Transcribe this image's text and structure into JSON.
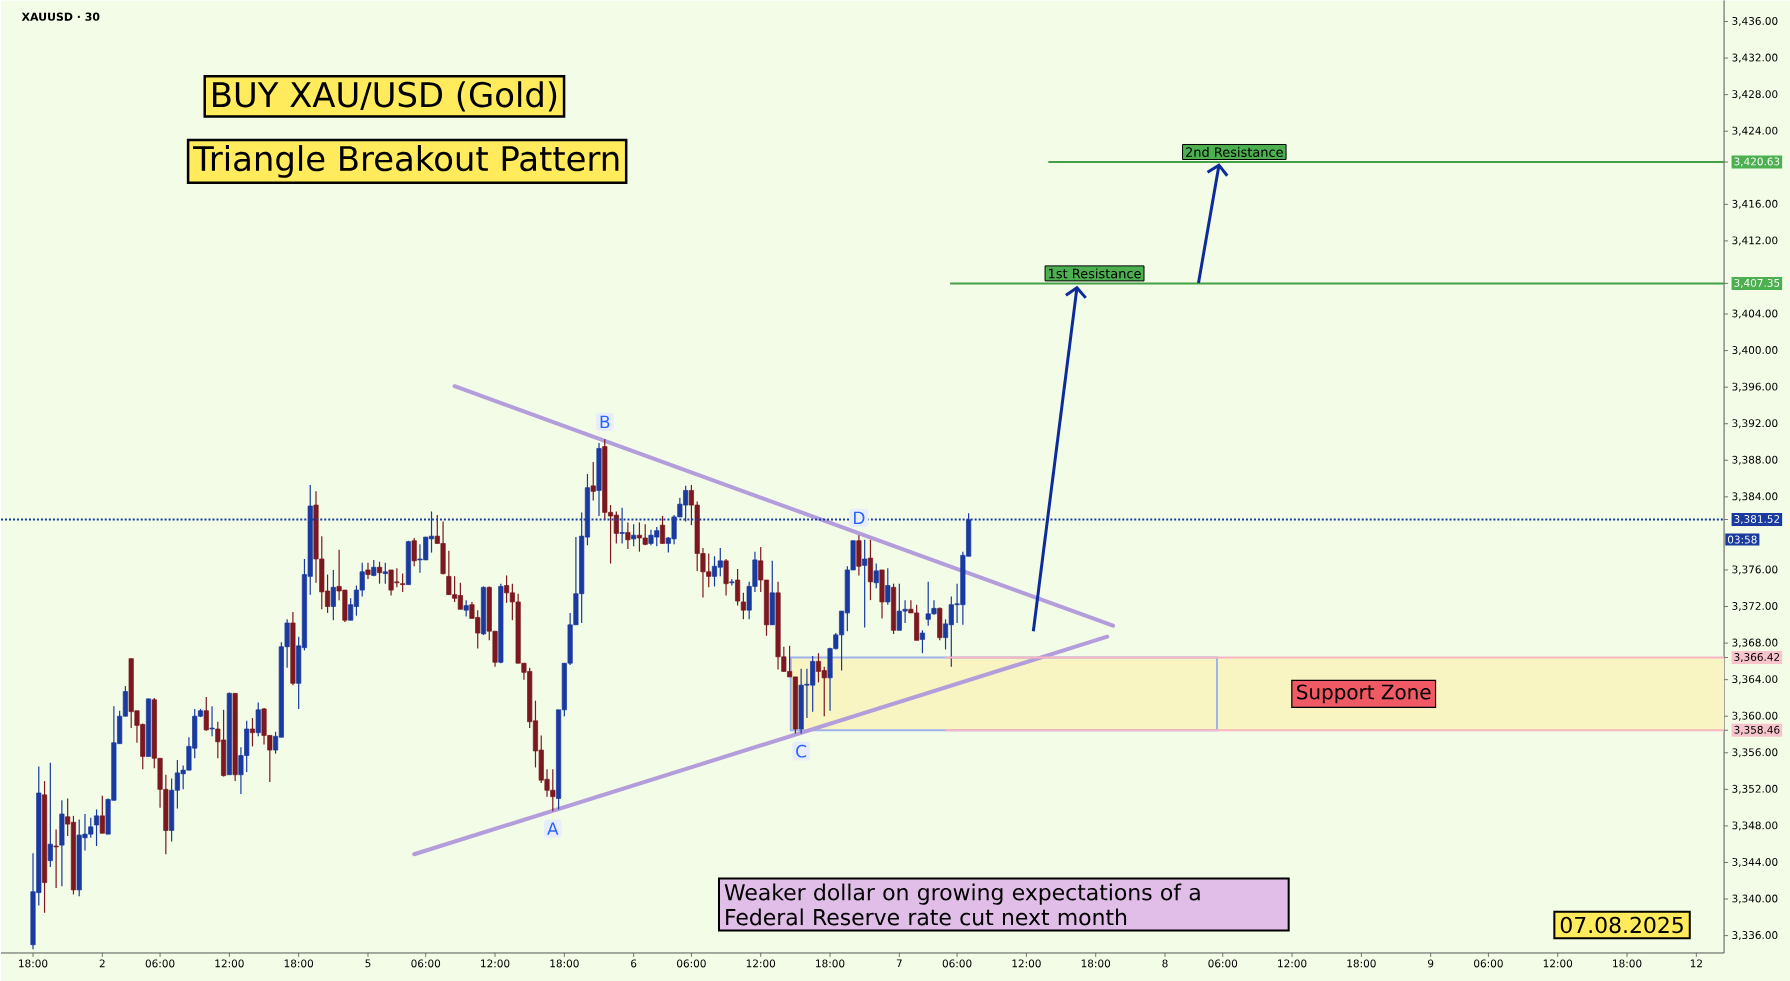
{
  "chart_data": {
    "type": "candlestick",
    "title": "BUY XAU/USD (Gold)",
    "subtitle": "Triangle Breakout Pattern",
    "annotations": [
      "XAUUSD · 30",
      "Weaker dollar on growing expectations of a Federal Reserve rate cut next month",
      "07.08.2025",
      "03:58",
      {
        "text": "A",
        "y": 3349.6
      },
      {
        "text": "B",
        "y": 3390.3
      },
      {
        "text": "C",
        "y": 3358.1
      },
      {
        "text": "D",
        "y": 3379.8
      }
    ],
    "categories": [
      "18:00",
      null,
      null,
      null,
      null,
      null,
      null,
      null,
      null,
      null,
      null,
      null,
      "2",
      null,
      null,
      null,
      null,
      null,
      null,
      null,
      null,
      null,
      "06:00",
      null,
      null,
      null,
      null,
      null,
      null,
      null,
      null,
      null,
      null,
      null,
      "12:00",
      null,
      null,
      null,
      null,
      null,
      null,
      null,
      null,
      null,
      null,
      null,
      "18:00",
      null,
      null,
      null,
      null,
      null,
      null,
      null,
      null,
      null,
      null,
      null,
      "5",
      null,
      null,
      null,
      null,
      null,
      null,
      null,
      null,
      null,
      "06:00",
      null,
      null,
      null,
      null,
      null,
      null,
      null,
      null,
      null,
      null,
      null,
      "12:00",
      null,
      null,
      null,
      null,
      null,
      null,
      null,
      null,
      null,
      null,
      null,
      "18:00",
      null,
      null,
      null,
      null,
      null,
      null,
      null,
      null,
      null,
      null,
      null,
      "6",
      null,
      null,
      null,
      null,
      null,
      null,
      null,
      null,
      null,
      "06:00",
      null,
      null,
      null,
      null,
      null,
      null,
      null,
      null,
      null,
      null,
      null,
      "12:00",
      null,
      null,
      null,
      null,
      null,
      null,
      null,
      null,
      null,
      null,
      null,
      "18:00",
      null,
      null,
      null,
      null,
      null,
      null,
      null,
      null,
      null,
      null,
      null,
      "7",
      null,
      null,
      null,
      null,
      null,
      null,
      null,
      null,
      null,
      "06:00",
      null,
      null,
      null,
      null,
      null,
      null,
      null,
      null,
      null,
      null,
      null,
      "12:00",
      null,
      null,
      null,
      null,
      null,
      null,
      null,
      null,
      null,
      null,
      null,
      "18:00",
      null,
      null,
      null,
      null,
      null,
      null,
      null,
      null,
      null,
      null,
      null,
      "8",
      null,
      null,
      null,
      null,
      null,
      null,
      null,
      null,
      null,
      "06:00",
      null,
      null,
      null,
      null,
      null,
      null,
      null,
      null,
      null,
      null,
      null,
      "12:00",
      null,
      null,
      null,
      null,
      null,
      null,
      null,
      null,
      null,
      null,
      null,
      "18:00",
      null,
      null,
      null,
      null,
      null,
      null,
      null,
      null,
      null,
      null,
      null,
      "9",
      null,
      null,
      null,
      null,
      null,
      null,
      null,
      null,
      null,
      "06:00",
      null,
      null,
      null,
      null,
      null,
      null,
      null,
      null,
      null,
      null,
      null,
      "12:00",
      null,
      null,
      null,
      null,
      null,
      null,
      null,
      null,
      null,
      null,
      null,
      "18:00",
      null,
      null,
      null,
      null,
      null,
      null,
      null,
      null,
      null,
      null,
      null,
      "12"
    ],
    "ohlc": [
      [
        3335,
        3345.0,
        3334.5,
        3340.8
      ],
      [
        3340.7,
        3354.5,
        3339.3,
        3351.6
      ],
      [
        3351.4,
        3352.9,
        3338.5,
        3341.8
      ],
      [
        3344.2,
        3354.9,
        3343.5,
        3346.0
      ],
      [
        3345.8,
        3347.6,
        3341.2,
        3345.7
      ],
      [
        3345.9,
        3350.8,
        3341.4,
        3349.3
      ],
      [
        3349.0,
        3351.0,
        3346.9,
        3348.2
      ],
      [
        3348.4,
        3349.1,
        3340.5,
        3341.0
      ],
      [
        3341.0,
        3348.7,
        3340.3,
        3347.0
      ],
      [
        3346.7,
        3349.3,
        3345.3,
        3347.1
      ],
      [
        3347.1,
        3348.9,
        3346.7,
        3347.9
      ],
      [
        3348.1,
        3349.8,
        3345.8,
        3349.1
      ],
      [
        3349.1,
        3351.3,
        3347.2,
        3347.2
      ],
      [
        3347.1,
        3351.0,
        3347.1,
        3350.9
      ],
      [
        3350.8,
        3361.1,
        3350.8,
        3357.1
      ],
      [
        3357.0,
        3360.6,
        3357.0,
        3360.0
      ],
      [
        3360.0,
        3363.3,
        3360.0,
        3362.7
      ],
      [
        3366.3,
        3366.3,
        3358.7,
        3360.5
      ],
      [
        3360.6,
        3360.6,
        3357.1,
        3359.0
      ],
      [
        3359.1,
        3359.2,
        3354.2,
        3355.6
      ],
      [
        3355.6,
        3361.9,
        3355.6,
        3361.9
      ],
      [
        3361.8,
        3362.0,
        3354.3,
        3355.4
      ],
      [
        3355.4,
        3355.4,
        3350.0,
        3352.0
      ],
      [
        3352.0,
        3353.6,
        3344.9,
        3347.5
      ],
      [
        3347.5,
        3353.2,
        3346.3,
        3351.9
      ],
      [
        3351.9,
        3355.2,
        3349.9,
        3353.8
      ],
      [
        3353.7,
        3354.6,
        3352.0,
        3354.1
      ],
      [
        3354.1,
        3357.7,
        3354.1,
        3356.7
      ],
      [
        3356.5,
        3360.8,
        3355.4,
        3360.0
      ],
      [
        3360.0,
        3360.8,
        3359.9,
        3360.6
      ],
      [
        3360.6,
        3362.1,
        3358.4,
        3358.5
      ],
      [
        3358.6,
        3361.1,
        3357.8,
        3358.7
      ],
      [
        3358.6,
        3359.4,
        3355.4,
        3357.2
      ],
      [
        3357.4,
        3360.7,
        3353.4,
        3353.5
      ],
      [
        3353.6,
        3362.6,
        3353.6,
        3362.5
      ],
      [
        3362.5,
        3362.5,
        3352.9,
        3353.6
      ],
      [
        3353.6,
        3356.6,
        3351.5,
        3355.7
      ],
      [
        3355.7,
        3359.5,
        3353.9,
        3358.6
      ],
      [
        3358.6,
        3359.8,
        3356.7,
        3358.2
      ],
      [
        3358.2,
        3361.5,
        3357.8,
        3360.7
      ],
      [
        3360.8,
        3360.9,
        3356.9,
        3357.9
      ],
      [
        3357.9,
        3357.9,
        3352.8,
        3356.3
      ],
      [
        3356.3,
        3358.3,
        3355.9,
        3357.8
      ],
      [
        3357.7,
        3368.1,
        3357.7,
        3367.6
      ],
      [
        3367.6,
        3370.6,
        3365.3,
        3370.2
      ],
      [
        3370.2,
        3371.4,
        3363.4,
        3363.6
      ],
      [
        3363.6,
        3368.7,
        3360.8,
        3367.7
      ],
      [
        3367.5,
        3377.2,
        3367.2,
        3375.5
      ],
      [
        3375.3,
        3385.3,
        3373.3,
        3383.0
      ],
      [
        3383.1,
        3384.6,
        3374.6,
        3377.2
      ],
      [
        3377.2,
        3379.7,
        3371.7,
        3373.6
      ],
      [
        3373.7,
        3375.5,
        3371.3,
        3372.0
      ],
      [
        3372.0,
        3376.0,
        3370.5,
        3374.1
      ],
      [
        3374.2,
        3378.2,
        3372.7,
        3373.7
      ],
      [
        3373.8,
        3373.8,
        3370.3,
        3370.5
      ],
      [
        3370.5,
        3372.9,
        3370.5,
        3372.2
      ],
      [
        3372.0,
        3374.3,
        3371.0,
        3373.8
      ],
      [
        3373.8,
        3376.8,
        3373.1,
        3375.8
      ],
      [
        3376.0,
        3376.8,
        3375.0,
        3375.5
      ],
      [
        3375.4,
        3377.1,
        3375.3,
        3376.3
      ],
      [
        3376.3,
        3376.9,
        3374.5,
        3375.7
      ],
      [
        3375.6,
        3376.8,
        3374.5,
        3375.8
      ],
      [
        3376.0,
        3376.0,
        3373.2,
        3373.8
      ],
      [
        3374.7,
        3376.2,
        3374.1,
        3374.6
      ],
      [
        3374.5,
        3375.6,
        3373.6,
        3374.4
      ],
      [
        3374.4,
        3379.2,
        3374.4,
        3379.1
      ],
      [
        3379.2,
        3379.5,
        3376.4,
        3377.0
      ],
      [
        3377.1,
        3378.8,
        3375.7,
        3377.2
      ],
      [
        3377.1,
        3379.6,
        3377.1,
        3379.6
      ],
      [
        3379.4,
        3382.4,
        3377.9,
        3379.7
      ],
      [
        3379.7,
        3382.0,
        3378.9,
        3378.9
      ],
      [
        3378.9,
        3381.3,
        3375.5,
        3375.6
      ],
      [
        3375.3,
        3378.1,
        3373.3,
        3373.3
      ],
      [
        3373.3,
        3375.3,
        3372.5,
        3372.9
      ],
      [
        3373.2,
        3374.6,
        3371.7,
        3371.7
      ],
      [
        3371.6,
        3372.7,
        3370.9,
        3372.1
      ],
      [
        3372.2,
        3372.5,
        3370.7,
        3370.7
      ],
      [
        3370.8,
        3371.6,
        3367.4,
        3369.1
      ],
      [
        3369.0,
        3374.2,
        3368.9,
        3374.1
      ],
      [
        3374.1,
        3374.2,
        3368.3,
        3369.3
      ],
      [
        3369.3,
        3369.3,
        3365.4,
        3365.9
      ],
      [
        3365.9,
        3374.5,
        3365.8,
        3374.2
      ],
      [
        3374.3,
        3375.4,
        3372.4,
        3373.5
      ],
      [
        3373.5,
        3374.5,
        3370.5,
        3372.5
      ],
      [
        3372.5,
        3373.4,
        3365.8,
        3365.8
      ],
      [
        3365.8,
        3365.8,
        3364.0,
        3364.8
      ],
      [
        3364.9,
        3365.3,
        3358.7,
        3359.4
      ],
      [
        3359.5,
        3361.7,
        3354.4,
        3356.2
      ],
      [
        3356.3,
        3357.9,
        3352.7,
        3353.0
      ],
      [
        3353.1,
        3354.2,
        3351.2,
        3351.9
      ],
      [
        3351.9,
        3354.2,
        3349.6,
        3351.2
      ],
      [
        3351.0,
        3360.7,
        3349.8,
        3360.7
      ],
      [
        3360.7,
        3365.8,
        3360.0,
        3365.8
      ],
      [
        3365.8,
        3371.3,
        3365.6,
        3370.0
      ],
      [
        3370.0,
        3379.6,
        3370.0,
        3373.4
      ],
      [
        3373.4,
        3382.3,
        3370.2,
        3379.7
      ],
      [
        3379.6,
        3386.5,
        3378.7,
        3385.0
      ],
      [
        3385.2,
        3387.8,
        3383.6,
        3384.6
      ],
      [
        3384.7,
        3389.9,
        3381.9,
        3389.3
      ],
      [
        3389.5,
        3390.3,
        3381.5,
        3382.3
      ],
      [
        3382.3,
        3383.1,
        3376.7,
        3381.9
      ],
      [
        3382.0,
        3382.4,
        3378.9,
        3380.0
      ],
      [
        3380.0,
        3382.8,
        3378.9,
        3380.1
      ],
      [
        3380.1,
        3381.2,
        3378.3,
        3379.3
      ],
      [
        3379.4,
        3381.0,
        3378.6,
        3379.8
      ],
      [
        3379.8,
        3381.2,
        3378.0,
        3379.5
      ],
      [
        3379.5,
        3381.0,
        3378.7,
        3378.8
      ],
      [
        3378.9,
        3380.4,
        3378.7,
        3379.8
      ],
      [
        3379.6,
        3380.7,
        3378.6,
        3380.3
      ],
      [
        3380.9,
        3381.9,
        3378.9,
        3378.9
      ],
      [
        3378.9,
        3379.6,
        3377.9,
        3379.5
      ],
      [
        3379.4,
        3382.0,
        3378.8,
        3381.8
      ],
      [
        3381.8,
        3383.9,
        3381.8,
        3383.2
      ],
      [
        3383.1,
        3385.2,
        3381.3,
        3384.7
      ],
      [
        3384.7,
        3385.3,
        3380.9,
        3383.1
      ],
      [
        3383.1,
        3383.5,
        3375.9,
        3377.8
      ],
      [
        3377.8,
        3378.4,
        3373.0,
        3375.8
      ],
      [
        3375.8,
        3377.8,
        3374.1,
        3375.3
      ],
      [
        3375.3,
        3377.5,
        3374.2,
        3376.4
      ],
      [
        3376.3,
        3378.4,
        3375.3,
        3377.0
      ],
      [
        3377.0,
        3377.2,
        3373.2,
        3374.5
      ],
      [
        3374.6,
        3375.0,
        3374.3,
        3374.7
      ],
      [
        3374.9,
        3376.1,
        3372.1,
        3372.6
      ],
      [
        3372.5,
        3373.5,
        3370.6,
        3371.6
      ],
      [
        3371.6,
        3374.7,
        3370.6,
        3374.2
      ],
      [
        3374.2,
        3378.0,
        3373.6,
        3377.1
      ],
      [
        3377.0,
        3378.5,
        3373.6,
        3374.9
      ],
      [
        3374.9,
        3374.9,
        3368.8,
        3370.0
      ],
      [
        3370.0,
        3377.0,
        3370.0,
        3373.5
      ],
      [
        3373.5,
        3374.7,
        3365.1,
        3366.5
      ],
      [
        3366.5,
        3367.6,
        3364.9,
        3364.9
      ],
      [
        3364.9,
        3367.7,
        3364.3,
        3364.3
      ],
      [
        3364.3,
        3364.3,
        3358.1,
        3358.6
      ],
      [
        3358.6,
        3365.2,
        3358.1,
        3363.4
      ],
      [
        3363.4,
        3365.2,
        3359.8,
        3363.5
      ],
      [
        3363.4,
        3366.6,
        3360.5,
        3366.0
      ],
      [
        3366.0,
        3366.9,
        3363.7,
        3364.9
      ],
      [
        3365.0,
        3365.4,
        3360.0,
        3364.2
      ],
      [
        3364.2,
        3367.5,
        3360.6,
        3367.4
      ],
      [
        3367.4,
        3369.1,
        3367.3,
        3368.9
      ],
      [
        3368.9,
        3371.5,
        3365.0,
        3371.5
      ],
      [
        3371.3,
        3376.4,
        3369.3,
        3376.0
      ],
      [
        3376.0,
        3379.2,
        3376.0,
        3379.2
      ],
      [
        3379.2,
        3379.8,
        3375.4,
        3376.4
      ],
      [
        3376.5,
        3379.3,
        3369.7,
        3377.2
      ],
      [
        3377.3,
        3379.3,
        3372.7,
        3374.7
      ],
      [
        3374.6,
        3376.7,
        3374.0,
        3375.9
      ],
      [
        3376.0,
        3376.0,
        3370.7,
        3372.5
      ],
      [
        3372.5,
        3376.2,
        3372.2,
        3374.3
      ],
      [
        3374.1,
        3374.5,
        3369.0,
        3369.4
      ],
      [
        3369.4,
        3374.5,
        3369.4,
        3371.5
      ],
      [
        3371.5,
        3372.7,
        3370.2,
        3371.7
      ],
      [
        3371.7,
        3372.7,
        3371.3,
        3371.3
      ],
      [
        3371.3,
        3372.2,
        3368.3,
        3368.3
      ],
      [
        3368.4,
        3369.4,
        3366.9,
        3369.1
      ],
      [
        3370.6,
        3374.7,
        3369.9,
        3371.2
      ],
      [
        3371.2,
        3372.7,
        3371.1,
        3371.8
      ],
      [
        3371.8,
        3371.9,
        3368.3,
        3368.6
      ],
      [
        3368.6,
        3370.6,
        3367.3,
        3370.1
      ],
      [
        3370.0,
        3373.1,
        3365.4,
        3372.2
      ],
      [
        3372.2,
        3374.5,
        3370.2,
        3372.3
      ],
      [
        3372.2,
        3378.0,
        3370.0,
        3377.6
      ],
      [
        3377.5,
        3382.2,
        3377.5,
        3381.5
      ],
      null,
      null,
      null,
      null,
      null,
      null,
      null,
      null,
      null,
      null,
      null,
      null,
      null,
      null,
      null,
      null,
      null,
      null,
      null,
      null,
      null,
      null,
      null,
      null,
      null,
      null,
      null,
      null,
      null,
      null,
      null,
      null,
      null,
      null,
      null,
      null,
      null,
      null,
      null,
      null,
      null,
      null,
      null,
      null,
      null,
      null,
      null,
      null,
      null,
      null,
      null,
      null,
      null,
      null,
      null,
      null,
      null,
      null,
      null,
      null,
      null,
      null,
      null,
      null,
      null,
      null,
      null,
      null,
      null,
      null,
      null,
      null,
      null,
      null,
      null,
      null,
      null,
      null,
      null,
      null,
      null,
      null,
      null,
      null,
      null,
      null,
      null,
      null,
      null,
      null,
      null,
      null,
      null,
      null,
      null,
      null,
      null,
      null,
      null,
      null,
      null,
      null,
      null,
      null,
      null,
      null,
      null,
      null,
      null,
      null,
      null,
      null,
      null,
      null,
      null,
      null,
      null,
      null,
      null,
      null,
      null,
      null,
      null,
      null,
      null,
      null
    ],
    "colors": [
      "#1a3aa0",
      "#1a3aa0",
      "#7b1820",
      "#1a3aa0",
      "#7b1820",
      "#1a3aa0",
      "#7b1820",
      "#7b1820",
      "#1a3aa0",
      "#1a3aa0",
      "#1a3aa0",
      "#1a3aa0",
      "#7b1820",
      "#1a3aa0",
      "#1a3aa0",
      "#1a3aa0",
      "#1a3aa0",
      "#7b1820",
      "#7b1820",
      "#7b1820",
      "#1a3aa0",
      "#7b1820",
      "#7b1820",
      "#7b1820",
      "#1a3aa0",
      "#1a3aa0",
      "#1a3aa0",
      "#1a3aa0",
      "#1a3aa0",
      "#1a3aa0",
      "#7b1820",
      "#1a3aa0",
      "#7b1820",
      "#7b1820",
      "#1a3aa0",
      "#7b1820",
      "#1a3aa0",
      "#1a3aa0",
      "#7b1820",
      "#1a3aa0",
      "#7b1820",
      "#7b1820",
      "#1a3aa0",
      "#1a3aa0",
      "#1a3aa0",
      "#7b1820",
      "#1a3aa0",
      "#1a3aa0",
      "#1a3aa0",
      "#7b1820",
      "#7b1820",
      "#7b1820",
      "#1a3aa0",
      "#7b1820",
      "#7b1820",
      "#1a3aa0",
      "#1a3aa0",
      "#1a3aa0",
      "#7b1820",
      "#1a3aa0",
      "#7b1820",
      "#1a3aa0",
      "#7b1820",
      "#7b1820",
      "#7b1820",
      "#1a3aa0",
      "#7b1820",
      "#1a3aa0",
      "#1a3aa0",
      "#1a3aa0",
      "#7b1820",
      "#7b1820",
      "#7b1820",
      "#7b1820",
      "#7b1820",
      "#1a3aa0",
      "#7b1820",
      "#7b1820",
      "#1a3aa0",
      "#7b1820",
      "#7b1820",
      "#1a3aa0",
      "#7b1820",
      "#7b1820",
      "#7b1820",
      "#7b1820",
      "#7b1820",
      "#7b1820",
      "#7b1820",
      "#7b1820",
      "#7b1820",
      "#1a3aa0",
      "#1a3aa0",
      "#1a3aa0",
      "#1a3aa0",
      "#1a3aa0",
      "#1a3aa0",
      "#7b1820",
      "#1a3aa0",
      "#7b1820",
      "#7b1820",
      "#7b1820",
      "#1a3aa0",
      "#7b1820",
      "#1a3aa0",
      "#7b1820",
      "#7b1820",
      "#1a3aa0",
      "#1a3aa0",
      "#7b1820",
      "#1a3aa0",
      "#1a3aa0",
      "#1a3aa0",
      "#1a3aa0",
      "#7b1820",
      "#7b1820",
      "#7b1820",
      "#7b1820",
      "#1a3aa0",
      "#1a3aa0",
      "#7b1820",
      "#1a3aa0",
      "#7b1820",
      "#7b1820",
      "#1a3aa0",
      "#1a3aa0",
      "#7b1820",
      "#7b1820",
      "#1a3aa0",
      "#7b1820",
      "#7b1820",
      "#7b1820",
      "#7b1820",
      "#1a3aa0",
      "#1a3aa0",
      "#1a3aa0",
      "#7b1820",
      "#7b1820",
      "#1a3aa0",
      "#1a3aa0",
      "#1a3aa0",
      "#1a3aa0",
      "#1a3aa0",
      "#7b1820",
      "#1a3aa0",
      "#7b1820",
      "#1a3aa0",
      "#7b1820",
      "#1a3aa0",
      "#7b1820",
      "#1a3aa0",
      "#1a3aa0",
      "#7b1820",
      "#7b1820",
      "#1a3aa0",
      "#1a3aa0",
      "#1a3aa0",
      "#7b1820",
      "#1a3aa0",
      "#1a3aa0",
      "#1a3aa0",
      "#1a3aa0",
      "#1a3aa0",
      null,
      null,
      null,
      null,
      null,
      null,
      null,
      null,
      null,
      null,
      null,
      null,
      null,
      null,
      null,
      null,
      null,
      null,
      null,
      null,
      null,
      null,
      null,
      null,
      null,
      null,
      null,
      null,
      null,
      null,
      null,
      null,
      null,
      null,
      null,
      null,
      null,
      null,
      null,
      null,
      null,
      null,
      null,
      null,
      null,
      null,
      null,
      null,
      null,
      null,
      null,
      null,
      null,
      null,
      null,
      null,
      null,
      null,
      null,
      null,
      null,
      null,
      null,
      null,
      null,
      null,
      null,
      null,
      null,
      null,
      null,
      null,
      null,
      null,
      null,
      null,
      null,
      null,
      null,
      null,
      null,
      null,
      null,
      null,
      null,
      null,
      null,
      null,
      null,
      null,
      null,
      null,
      null,
      null,
      null,
      null,
      null,
      null,
      null,
      null,
      null,
      null,
      null,
      null,
      null,
      null,
      null,
      null,
      null,
      null,
      null,
      null,
      null,
      null,
      null,
      null,
      null,
      null,
      null,
      null,
      null,
      null,
      null,
      null,
      null,
      null
    ],
    "series": [
      {
        "type": "line",
        "color": "#b39ddb",
        "values": [
          null,
          null,
          null,
          null,
          null,
          null,
          null,
          null,
          null,
          null,
          null,
          null,
          null,
          null,
          null,
          null,
          null,
          null,
          null,
          null,
          null,
          null,
          null,
          null,
          null,
          null,
          null,
          null,
          null,
          null,
          null,
          null,
          null,
          null,
          null,
          null,
          null,
          null,
          null,
          null,
          null,
          null,
          null,
          null,
          null,
          null,
          null,
          null,
          null,
          null,
          null,
          null,
          null,
          null,
          null,
          null,
          null,
          null,
          null,
          null,
          null,
          null,
          null,
          null,
          null,
          null,
          null,
          null,
          null,
          null,
          null,
          null,
          null,
          3396.1,
          null,
          null,
          null,
          null,
          null,
          null,
          null,
          null,
          null,
          null,
          null,
          null,
          null,
          null,
          null,
          null,
          null,
          null,
          null,
          null,
          null,
          null,
          null,
          null,
          null,
          null,
          null,
          null,
          null,
          null,
          null,
          null,
          null,
          null,
          null,
          null,
          null,
          null,
          null,
          null,
          null,
          null,
          null,
          null,
          null,
          null,
          null,
          null,
          null,
          null,
          null,
          null,
          null,
          null,
          null,
          null,
          null,
          null,
          null,
          null,
          null,
          null,
          null,
          null,
          null,
          null,
          null,
          null,
          null,
          null,
          null,
          null,
          null,
          null,
          null,
          null,
          null,
          null,
          null,
          null,
          null,
          null,
          null,
          null,
          null,
          null,
          null,
          null,
          null,
          null,
          null,
          null,
          null,
          null,
          null,
          null,
          null,
          null,
          null,
          null,
          null,
          null,
          null,
          null,
          null,
          null,
          null,
          null,
          null,
          null,
          null,
          null,
          null,
          3369.9,
          null,
          null,
          null,
          null,
          null,
          null,
          null,
          null,
          null,
          null,
          null,
          null,
          null,
          null,
          null,
          null,
          null,
          null,
          null,
          null,
          null,
          null,
          null,
          null,
          null,
          null,
          null,
          null,
          null,
          null,
          null,
          null,
          null,
          null,
          null,
          null,
          null,
          null,
          null,
          null,
          null,
          null,
          null,
          null,
          null,
          null,
          null,
          null,
          null,
          null,
          null,
          null,
          null,
          null,
          null,
          null,
          null,
          null,
          null,
          null,
          null,
          null,
          null,
          null,
          null,
          null,
          null,
          null,
          null,
          null,
          null,
          null,
          null,
          null,
          null,
          null,
          null,
          null,
          null,
          null,
          null,
          null,
          null,
          null,
          null,
          null,
          null,
          null,
          null,
          null,
          null,
          null,
          null,
          null,
          null,
          null,
          null,
          null,
          null,
          null,
          null
        ]
      },
      {
        "type": "line",
        "color": "#b39ddb",
        "values": [
          null,
          null,
          null,
          null,
          null,
          null,
          null,
          null,
          null,
          null,
          null,
          null,
          null,
          null,
          null,
          null,
          null,
          null,
          null,
          null,
          null,
          null,
          null,
          null,
          null,
          null,
          null,
          null,
          null,
          null,
          null,
          null,
          null,
          null,
          null,
          null,
          null,
          null,
          null,
          null,
          null,
          null,
          null,
          null,
          null,
          null,
          null,
          null,
          null,
          null,
          null,
          null,
          null,
          null,
          null,
          null,
          null,
          null,
          null,
          null,
          null,
          null,
          null,
          null,
          null,
          null,
          3344.9,
          null,
          null,
          null,
          null,
          null,
          null,
          null,
          null,
          null,
          null,
          null,
          null,
          null,
          null,
          null,
          null,
          null,
          null,
          null,
          null,
          null,
          null,
          null,
          null,
          null,
          null,
          null,
          null,
          null,
          null,
          null,
          null,
          null,
          null,
          null,
          null,
          null,
          null,
          null,
          null,
          null,
          null,
          null,
          null,
          null,
          null,
          null,
          null,
          null,
          null,
          null,
          null,
          null,
          null,
          null,
          null,
          null,
          null,
          null,
          null,
          null,
          null,
          null,
          null,
          null,
          null,
          null,
          null,
          null,
          null,
          null,
          null,
          null,
          null,
          null,
          null,
          null,
          null,
          null,
          null,
          null,
          null,
          null,
          null,
          null,
          null,
          null,
          null,
          null,
          null,
          null,
          null,
          null,
          null,
          null,
          null,
          null,
          null,
          null,
          null,
          null,
          null,
          null,
          null,
          null,
          null,
          null,
          null,
          null,
          null,
          null,
          null,
          null,
          null,
          null,
          null,
          null,
          null,
          null,
          3368.7,
          null,
          null,
          null,
          null,
          null,
          null,
          null,
          null,
          null,
          null,
          null,
          null,
          null,
          null,
          null,
          null,
          null,
          null,
          null,
          null,
          null,
          null,
          null,
          null,
          null,
          null,
          null,
          null,
          null,
          null,
          null,
          null,
          null,
          null,
          null,
          null,
          null,
          null,
          null,
          null,
          null,
          null,
          null,
          null,
          null,
          null,
          null,
          null,
          null,
          null,
          null,
          null,
          null,
          null,
          null,
          null,
          null,
          null,
          null,
          null,
          null,
          null,
          null,
          null,
          null,
          null,
          null,
          null,
          null,
          null,
          null,
          null,
          null,
          null,
          null,
          null,
          null,
          null,
          null,
          null,
          null,
          null,
          null,
          null,
          null,
          null,
          null,
          null,
          null,
          null,
          null,
          null,
          null,
          null,
          null,
          null,
          null,
          null,
          null,
          null,
          null,
          null
        ]
      }
    ],
    "ref_lines": [
      {
        "axis": "y",
        "value": 3420.63,
        "label": "2nd Resistance",
        "color": "#43a047"
      },
      {
        "axis": "y",
        "value": 3407.35,
        "label": "1st Resistance",
        "color": "#43a047"
      },
      {
        "axis": "y",
        "value": 3381.52,
        "color": "#1a3aa0",
        "line_style": "dotted"
      },
      {
        "axis": "y",
        "value": 3366.42,
        "color": "#f7b6c2"
      },
      {
        "axis": "y",
        "value": 3358.46,
        "color": "#f7b6c2"
      }
    ],
    "bands": [
      {
        "axis": "y",
        "from": 3358.46,
        "to": 3366.42,
        "label": "Support Zone",
        "color": "#f8f5c2"
      }
    ],
    "ylim": [
      3334.1,
      3438.3
    ],
    "yticks": [
      {
        "value": 3336,
        "label": "3,336.00"
      },
      {
        "value": 3340,
        "label": "3,340.00"
      },
      {
        "value": 3344,
        "label": "3,344.00"
      },
      {
        "value": 3348,
        "label": "3,348.00"
      },
      {
        "value": 3352,
        "label": "3,352.00"
      },
      {
        "value": 3356,
        "label": "3,356.00"
      },
      {
        "value": 3358.46,
        "label": "3,358.46"
      },
      {
        "value": 3360,
        "label": "3,360.00"
      },
      {
        "value": 3364,
        "label": "3,364.00"
      },
      {
        "value": 3366.42,
        "label": "3,366.42"
      },
      {
        "value": 3368,
        "label": "3,368.00"
      },
      {
        "value": 3372,
        "label": "3,372.00"
      },
      {
        "value": 3376,
        "label": "3,376.00"
      },
      {
        "value": 3381.52,
        "label": "3,381.52"
      },
      {
        "value": 3384,
        "label": "3,384.00"
      },
      {
        "value": 3388,
        "label": "3,388.00"
      },
      {
        "value": 3392,
        "label": "3,392.00"
      },
      {
        "value": 3396,
        "label": "3,396.00"
      },
      {
        "value": 3400,
        "label": "3,400.00"
      },
      {
        "value": 3404,
        "label": "3,404.00"
      },
      {
        "value": 3407.35,
        "label": "3,407.35"
      },
      {
        "value": 3412,
        "label": "3,412.00"
      },
      {
        "value": 3416,
        "label": "3,416.00"
      },
      {
        "value": 3420.63,
        "label": "3,420.63"
      },
      {
        "value": 3424,
        "label": "3,424.00"
      },
      {
        "value": 3428,
        "label": "3,428.00"
      },
      {
        "value": 3432,
        "label": "3,432.00"
      },
      {
        "value": 3436,
        "label": "3,436.00"
      }
    ]
  }
}
